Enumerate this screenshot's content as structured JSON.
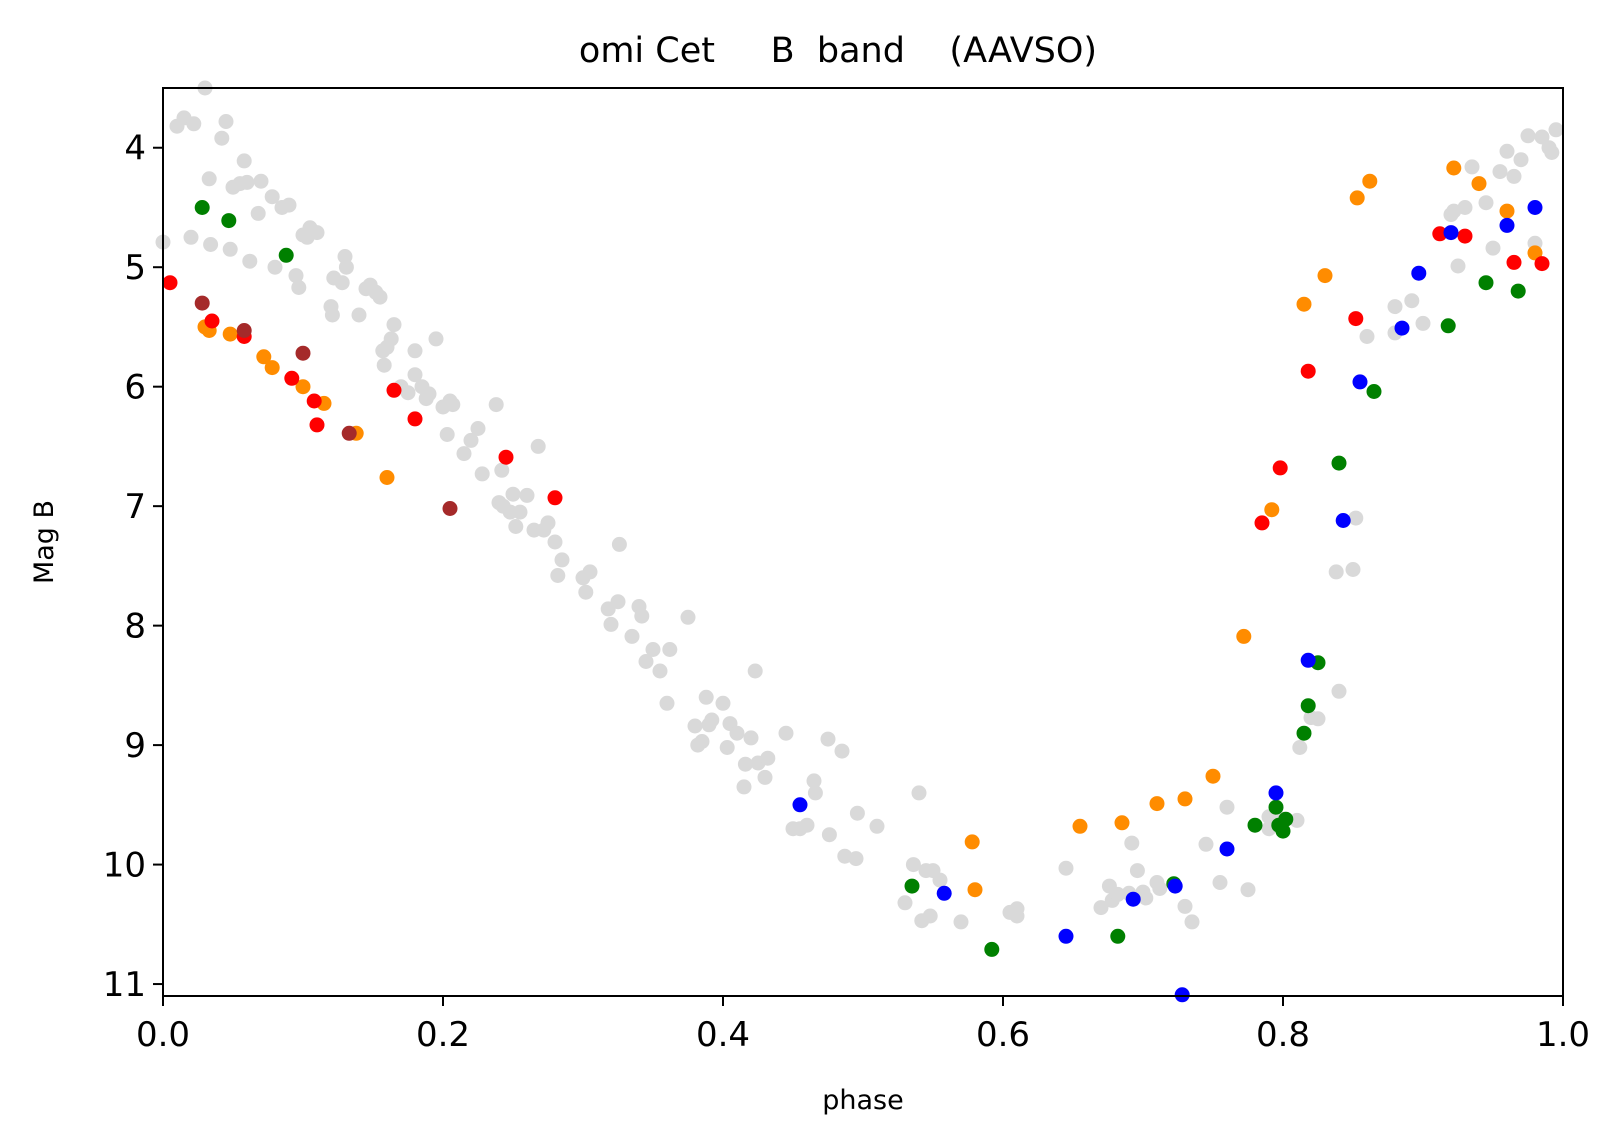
{
  "chart_data": {
    "type": "scatter",
    "title": "omi Cet     B  band    (AAVSO)",
    "xlabel": "phase",
    "ylabel": "Mag B",
    "xlim": [
      0.0,
      1.0
    ],
    "ylim": [
      3.5,
      11.1
    ],
    "y_inverted": true,
    "grid": false,
    "x_ticks": [
      0.0,
      0.2,
      0.4,
      0.6,
      0.8,
      1.0
    ],
    "x_tick_labels": [
      "0.0",
      "0.2",
      "0.4",
      "0.6",
      "0.8",
      "1.0"
    ],
    "y_ticks": [
      4,
      5,
      6,
      7,
      8,
      9,
      10,
      11
    ],
    "y_tick_labels": [
      "4",
      "5",
      "6",
      "7",
      "8",
      "9",
      "10",
      "11"
    ],
    "series": [
      {
        "color": "#d9d9d9",
        "points": [
          [
            0.0,
            4.79
          ],
          [
            0.01,
            3.82
          ],
          [
            0.015,
            3.75
          ],
          [
            0.02,
            4.75
          ],
          [
            0.022,
            3.8
          ],
          [
            0.03,
            3.5
          ],
          [
            0.033,
            4.26
          ],
          [
            0.034,
            4.81
          ],
          [
            0.042,
            3.92
          ],
          [
            0.045,
            3.78
          ],
          [
            0.048,
            4.85
          ],
          [
            0.05,
            4.33
          ],
          [
            0.055,
            4.3
          ],
          [
            0.058,
            4.11
          ],
          [
            0.06,
            4.29
          ],
          [
            0.062,
            4.95
          ],
          [
            0.068,
            4.55
          ],
          [
            0.07,
            4.28
          ],
          [
            0.078,
            4.41
          ],
          [
            0.08,
            5.0
          ],
          [
            0.085,
            4.5
          ],
          [
            0.09,
            4.48
          ],
          [
            0.095,
            5.07
          ],
          [
            0.097,
            5.17
          ],
          [
            0.1,
            4.73
          ],
          [
            0.103,
            4.75
          ],
          [
            0.105,
            4.67
          ],
          [
            0.11,
            4.71
          ],
          [
            0.12,
            5.33
          ],
          [
            0.121,
            5.4
          ],
          [
            0.122,
            5.09
          ],
          [
            0.128,
            5.13
          ],
          [
            0.13,
            4.91
          ],
          [
            0.131,
            5.0
          ],
          [
            0.14,
            5.4
          ],
          [
            0.145,
            5.18
          ],
          [
            0.148,
            5.15
          ],
          [
            0.152,
            5.21
          ],
          [
            0.155,
            5.25
          ],
          [
            0.157,
            5.7
          ],
          [
            0.158,
            5.82
          ],
          [
            0.16,
            5.67
          ],
          [
            0.163,
            5.6
          ],
          [
            0.165,
            5.48
          ],
          [
            0.17,
            6.0
          ],
          [
            0.175,
            6.05
          ],
          [
            0.18,
            5.7
          ],
          [
            0.18,
            5.9
          ],
          [
            0.185,
            6.0
          ],
          [
            0.188,
            6.1
          ],
          [
            0.19,
            6.06
          ],
          [
            0.195,
            5.6
          ],
          [
            0.2,
            6.17
          ],
          [
            0.203,
            6.4
          ],
          [
            0.205,
            6.12
          ],
          [
            0.207,
            6.15
          ],
          [
            0.215,
            6.56
          ],
          [
            0.22,
            6.45
          ],
          [
            0.225,
            6.35
          ],
          [
            0.228,
            6.73
          ],
          [
            0.238,
            6.15
          ],
          [
            0.24,
            6.97
          ],
          [
            0.242,
            6.7
          ],
          [
            0.243,
            7.0
          ],
          [
            0.248,
            7.05
          ],
          [
            0.25,
            6.9
          ],
          [
            0.252,
            7.17
          ],
          [
            0.255,
            7.05
          ],
          [
            0.26,
            6.91
          ],
          [
            0.265,
            7.2
          ],
          [
            0.268,
            6.5
          ],
          [
            0.272,
            7.2
          ],
          [
            0.275,
            7.14
          ],
          [
            0.28,
            7.3
          ],
          [
            0.282,
            7.58
          ],
          [
            0.285,
            7.45
          ],
          [
            0.3,
            7.6
          ],
          [
            0.302,
            7.72
          ],
          [
            0.305,
            7.55
          ],
          [
            0.318,
            7.86
          ],
          [
            0.32,
            7.99
          ],
          [
            0.325,
            7.8
          ],
          [
            0.326,
            7.32
          ],
          [
            0.335,
            8.09
          ],
          [
            0.34,
            7.84
          ],
          [
            0.342,
            7.92
          ],
          [
            0.345,
            8.3
          ],
          [
            0.35,
            8.2
          ],
          [
            0.355,
            8.38
          ],
          [
            0.36,
            8.65
          ],
          [
            0.362,
            8.2
          ],
          [
            0.375,
            7.93
          ],
          [
            0.38,
            8.84
          ],
          [
            0.382,
            9.0
          ],
          [
            0.385,
            8.97
          ],
          [
            0.388,
            8.6
          ],
          [
            0.39,
            8.83
          ],
          [
            0.392,
            8.79
          ],
          [
            0.4,
            8.65
          ],
          [
            0.403,
            9.02
          ],
          [
            0.405,
            8.82
          ],
          [
            0.41,
            8.9
          ],
          [
            0.415,
            9.35
          ],
          [
            0.416,
            9.16
          ],
          [
            0.42,
            8.94
          ],
          [
            0.423,
            8.38
          ],
          [
            0.425,
            9.15
          ],
          [
            0.43,
            9.27
          ],
          [
            0.432,
            9.11
          ],
          [
            0.445,
            8.9
          ],
          [
            0.45,
            9.7
          ],
          [
            0.455,
            9.7
          ],
          [
            0.46,
            9.67
          ],
          [
            0.465,
            9.3
          ],
          [
            0.466,
            9.4
          ],
          [
            0.475,
            8.95
          ],
          [
            0.476,
            9.75
          ],
          [
            0.485,
            9.05
          ],
          [
            0.487,
            9.93
          ],
          [
            0.495,
            9.95
          ],
          [
            0.496,
            9.57
          ],
          [
            0.51,
            9.68
          ],
          [
            0.53,
            10.32
          ],
          [
            0.536,
            10.0
          ],
          [
            0.54,
            9.4
          ],
          [
            0.542,
            10.47
          ],
          [
            0.545,
            10.05
          ],
          [
            0.548,
            10.43
          ],
          [
            0.55,
            10.05
          ],
          [
            0.555,
            10.13
          ],
          [
            0.57,
            10.48
          ],
          [
            0.605,
            10.4
          ],
          [
            0.61,
            10.37
          ],
          [
            0.61,
            10.43
          ],
          [
            0.645,
            10.03
          ],
          [
            0.67,
            10.36
          ],
          [
            0.676,
            10.18
          ],
          [
            0.678,
            10.3
          ],
          [
            0.682,
            10.25
          ],
          [
            0.69,
            10.24
          ],
          [
            0.692,
            9.82
          ],
          [
            0.696,
            10.05
          ],
          [
            0.7,
            10.23
          ],
          [
            0.702,
            10.28
          ],
          [
            0.71,
            10.15
          ],
          [
            0.712,
            10.2
          ],
          [
            0.73,
            10.35
          ],
          [
            0.735,
            10.48
          ],
          [
            0.745,
            9.83
          ],
          [
            0.755,
            10.15
          ],
          [
            0.76,
            9.52
          ],
          [
            0.775,
            10.21
          ],
          [
            0.79,
            9.6
          ],
          [
            0.79,
            9.7
          ],
          [
            0.8,
            9.62
          ],
          [
            0.81,
            9.63
          ],
          [
            0.812,
            9.02
          ],
          [
            0.82,
            8.77
          ],
          [
            0.825,
            8.78
          ],
          [
            0.838,
            7.55
          ],
          [
            0.84,
            8.55
          ],
          [
            0.85,
            7.53
          ],
          [
            0.852,
            7.1
          ],
          [
            0.86,
            5.58
          ],
          [
            0.88,
            5.33
          ],
          [
            0.88,
            5.55
          ],
          [
            0.892,
            5.28
          ],
          [
            0.9,
            5.47
          ],
          [
            0.92,
            4.56
          ],
          [
            0.922,
            4.53
          ],
          [
            0.925,
            4.99
          ],
          [
            0.93,
            4.5
          ],
          [
            0.935,
            4.16
          ],
          [
            0.945,
            4.46
          ],
          [
            0.95,
            4.84
          ],
          [
            0.955,
            4.2
          ],
          [
            0.96,
            4.03
          ],
          [
            0.965,
            4.24
          ],
          [
            0.97,
            4.1
          ],
          [
            0.975,
            3.9
          ],
          [
            0.98,
            4.8
          ],
          [
            0.985,
            3.91
          ],
          [
            0.99,
            4.0
          ],
          [
            0.992,
            4.04
          ],
          [
            0.995,
            3.85
          ]
        ]
      },
      {
        "color": "#ff8c00",
        "points": [
          [
            0.03,
            5.5
          ],
          [
            0.033,
            5.53
          ],
          [
            0.048,
            5.56
          ],
          [
            0.072,
            5.75
          ],
          [
            0.078,
            5.84
          ],
          [
            0.1,
            6.0
          ],
          [
            0.115,
            6.14
          ],
          [
            0.138,
            6.39
          ],
          [
            0.16,
            6.76
          ],
          [
            0.578,
            9.81
          ],
          [
            0.58,
            10.21
          ],
          [
            0.655,
            9.68
          ],
          [
            0.685,
            9.65
          ],
          [
            0.71,
            9.49
          ],
          [
            0.73,
            9.45
          ],
          [
            0.75,
            9.26
          ],
          [
            0.772,
            8.09
          ],
          [
            0.792,
            7.03
          ],
          [
            0.815,
            5.31
          ],
          [
            0.83,
            5.07
          ],
          [
            0.853,
            4.42
          ],
          [
            0.862,
            4.28
          ],
          [
            0.922,
            4.17
          ],
          [
            0.94,
            4.3
          ],
          [
            0.96,
            4.53
          ],
          [
            0.98,
            4.88
          ]
        ]
      },
      {
        "color": "#ff0000",
        "points": [
          [
            0.005,
            5.13
          ],
          [
            0.035,
            5.45
          ],
          [
            0.058,
            5.58
          ],
          [
            0.092,
            5.93
          ],
          [
            0.108,
            6.12
          ],
          [
            0.11,
            6.32
          ],
          [
            0.165,
            6.03
          ],
          [
            0.18,
            6.27
          ],
          [
            0.245,
            6.59
          ],
          [
            0.28,
            6.93
          ],
          [
            0.785,
            7.14
          ],
          [
            0.798,
            6.68
          ],
          [
            0.818,
            5.87
          ],
          [
            0.852,
            5.43
          ],
          [
            0.912,
            4.72
          ],
          [
            0.93,
            4.74
          ],
          [
            0.965,
            4.96
          ],
          [
            0.985,
            4.97
          ]
        ]
      },
      {
        "color": "#a52a2a",
        "points": [
          [
            0.028,
            5.3
          ],
          [
            0.058,
            5.53
          ],
          [
            0.1,
            5.72
          ],
          [
            0.133,
            6.39
          ],
          [
            0.205,
            7.02
          ]
        ]
      },
      {
        "color": "#008000",
        "points": [
          [
            0.028,
            4.5
          ],
          [
            0.047,
            4.61
          ],
          [
            0.088,
            4.9
          ],
          [
            0.535,
            10.18
          ],
          [
            0.592,
            10.71
          ],
          [
            0.682,
            10.6
          ],
          [
            0.722,
            10.16
          ],
          [
            0.78,
            9.67
          ],
          [
            0.795,
            9.52
          ],
          [
            0.797,
            9.67
          ],
          [
            0.8,
            9.72
          ],
          [
            0.802,
            9.62
          ],
          [
            0.815,
            8.9
          ],
          [
            0.818,
            8.67
          ],
          [
            0.825,
            8.31
          ],
          [
            0.84,
            6.64
          ],
          [
            0.865,
            6.04
          ],
          [
            0.918,
            5.49
          ],
          [
            0.945,
            5.13
          ],
          [
            0.968,
            5.2
          ]
        ]
      },
      {
        "color": "#0000ff",
        "points": [
          [
            0.455,
            9.5
          ],
          [
            0.558,
            10.24
          ],
          [
            0.645,
            10.6
          ],
          [
            0.693,
            10.29
          ],
          [
            0.723,
            10.18
          ],
          [
            0.728,
            11.09
          ],
          [
            0.76,
            9.87
          ],
          [
            0.795,
            9.4
          ],
          [
            0.818,
            8.29
          ],
          [
            0.843,
            7.12
          ],
          [
            0.855,
            5.96
          ],
          [
            0.885,
            5.51
          ],
          [
            0.897,
            5.05
          ],
          [
            0.92,
            4.71
          ],
          [
            0.96,
            4.65
          ],
          [
            0.98,
            4.5
          ]
        ]
      }
    ]
  }
}
